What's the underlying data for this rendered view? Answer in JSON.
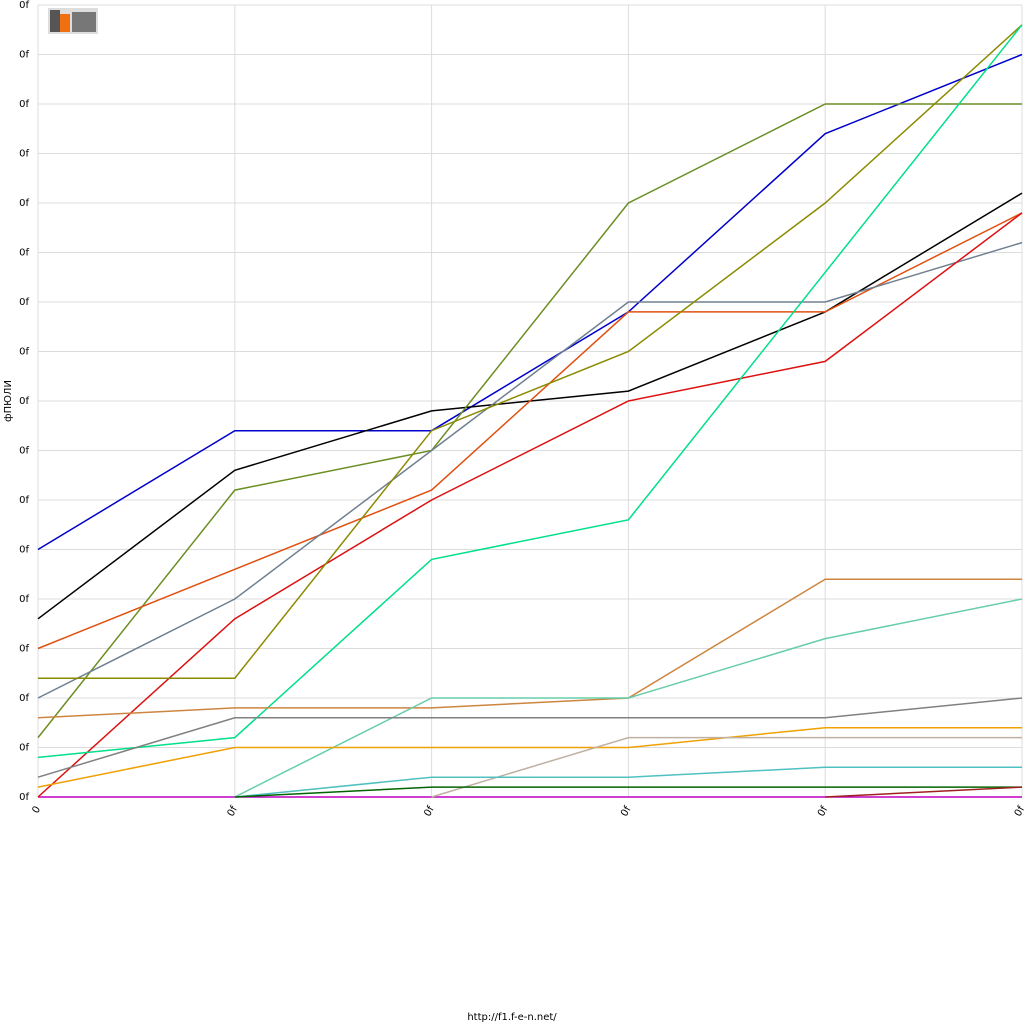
{
  "chart_data": {
    "type": "line",
    "y_label": "фПЮЛИ",
    "footer": "http://f1.f-e-n.net/",
    "categories": [
      "0",
      "0f",
      "0f",
      "0f",
      "0f",
      "0f"
    ],
    "ylim": [
      0,
      16
    ],
    "yticks": [
      {
        "value": 0,
        "label": "0f"
      },
      {
        "value": 1,
        "label": "0f"
      },
      {
        "value": 2,
        "label": "0f"
      },
      {
        "value": 3,
        "label": "0f"
      },
      {
        "value": 4,
        "label": "0f"
      },
      {
        "value": 5,
        "label": "0f"
      },
      {
        "value": 6,
        "label": "0f"
      },
      {
        "value": 7,
        "label": "0f"
      },
      {
        "value": 8,
        "label": "0f"
      },
      {
        "value": 9,
        "label": "0f"
      },
      {
        "value": 10,
        "label": "0f"
      },
      {
        "value": 11,
        "label": "0f"
      },
      {
        "value": 12,
        "label": "0f"
      },
      {
        "value": 13,
        "label": "0f"
      },
      {
        "value": 14,
        "label": "0f"
      },
      {
        "value": 15,
        "label": "0f"
      },
      {
        "value": 16,
        "label": "0f"
      }
    ],
    "grid": true,
    "series": [
      {
        "color": "#c000c0",
        "values": [
          0,
          0,
          0,
          0,
          0,
          0
        ]
      },
      {
        "color": "#0000cc",
        "values": [
          5,
          7.4,
          7.4,
          9.8,
          13.4,
          15
        ]
      },
      {
        "color": "#000000",
        "values": [
          3.6,
          6.6,
          7.8,
          8.2,
          9.8,
          12.2
        ]
      },
      {
        "color": "#6b8e23",
        "values": [
          1.2,
          6.2,
          7,
          12,
          14,
          14
        ]
      },
      {
        "color": "#e05010",
        "values": [
          3,
          4.6,
          6.2,
          9.8,
          9.8,
          11.8
        ]
      },
      {
        "color": "#708090",
        "values": [
          2,
          4,
          7,
          10,
          10,
          11.2
        ]
      },
      {
        "color": "#dd1010",
        "values": [
          0,
          3.6,
          6,
          8,
          8.8,
          11.8
        ]
      },
      {
        "color": "#8b8b00",
        "values": [
          2.4,
          2.4,
          7.4,
          9,
          12,
          15.6
        ]
      },
      {
        "color": "#00e08a",
        "values": [
          0.8,
          1.2,
          4.8,
          5.6,
          10.6,
          15.6
        ]
      },
      {
        "color": "#cd853f",
        "values": [
          1.6,
          1.8,
          1.8,
          2,
          4.4,
          4.4
        ]
      },
      {
        "color": "#66cdaa",
        "values": [
          null,
          0,
          2,
          2,
          3.2,
          4
        ]
      },
      {
        "color": "#808080",
        "values": [
          0.4,
          1.6,
          1.6,
          1.6,
          1.6,
          2
        ]
      },
      {
        "color": "#f0a000",
        "values": [
          0.2,
          1,
          1,
          1,
          1.4,
          1.4
        ]
      },
      {
        "color": "#c0b0a0",
        "values": [
          null,
          null,
          0,
          1.2,
          1.2,
          1.2
        ]
      },
      {
        "color": "#50c0c0",
        "values": [
          null,
          0,
          0.4,
          0.4,
          0.6,
          0.6
        ]
      },
      {
        "color": "#006400",
        "values": [
          null,
          0,
          0.2,
          0.2,
          0.2,
          0.2
        ]
      },
      {
        "color": "#a02020",
        "values": [
          null,
          null,
          null,
          null,
          0,
          0.2
        ]
      }
    ]
  }
}
